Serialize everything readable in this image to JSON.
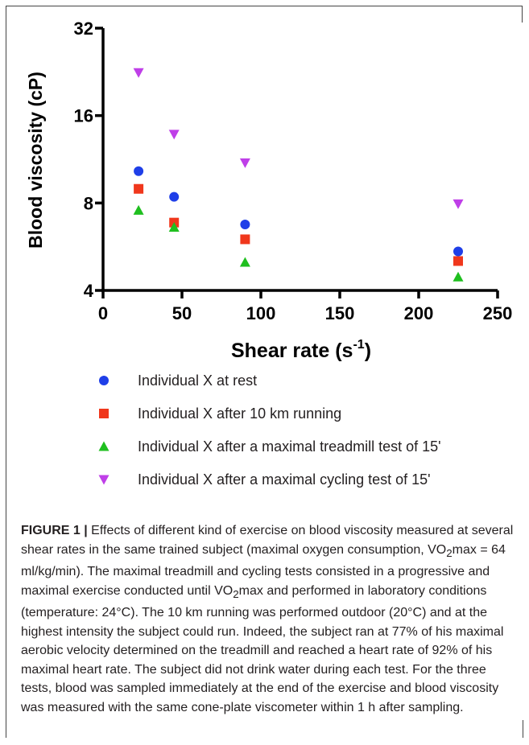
{
  "chart_data": {
    "type": "scatter",
    "xlabel": "Shear rate (s",
    "xlabel_sup": "-1",
    "xlabel_suffix": ")",
    "ylabel": "Blood viscosity (cP)",
    "xlim": [
      0,
      250
    ],
    "ylim": [
      4,
      32
    ],
    "yscale": "log2",
    "xticks": [
      0,
      50,
      100,
      150,
      200,
      250
    ],
    "yticks": [
      4,
      8,
      16,
      32
    ],
    "grid": false,
    "legend_position": "bottom",
    "series": [
      {
        "name": "Individual X at rest",
        "marker": "circle",
        "color": "#1f3fe8",
        "x": [
          22.5,
          45,
          90,
          225
        ],
        "y": [
          10.3,
          8.4,
          6.75,
          5.45
        ]
      },
      {
        "name": "Individual X after 10 km running",
        "marker": "square",
        "color": "#f0371c",
        "x": [
          22.5,
          45,
          90,
          225
        ],
        "y": [
          8.95,
          6.85,
          6.0,
          5.05
        ]
      },
      {
        "name": "Individual X after a maximal treadmill test of 15'",
        "marker": "triangle-up",
        "color": "#1fbf1f",
        "x": [
          22.5,
          45,
          90,
          225
        ],
        "y": [
          7.55,
          6.6,
          5.0,
          4.45
        ]
      },
      {
        "name": "Individual X after a maximal cycling test of 15'",
        "marker": "triangle-down",
        "color": "#bf3fe8",
        "x": [
          22.5,
          45,
          90,
          225
        ],
        "y": [
          22.5,
          13.8,
          11.0,
          7.95
        ]
      }
    ]
  },
  "caption": {
    "label": "FIGURE 1 |",
    "line1": " Effects of different kind of exercise on blood viscosity measured at several shear rates in the same trained subject (maximal oxygen consumption, VO",
    "sub1": "2",
    "line2": "max = 64 ml/kg/min). The maximal treadmill and cycling tests consisted in a progressive and maximal exercise conducted until VO",
    "sub2": "2",
    "line3": "max and performed in laboratory conditions (temperature: 24°C). The 10 km running was performed outdoor (20°C) and at the highest intensity the subject could run. Indeed, the subject ran at 77% of his maximal aerobic velocity determined on the treadmill and reached a heart rate of 92% of his maximal heart rate. The subject did not drink water during each test. For the three tests, blood was sampled immediately at the end of the exercise and blood viscosity was measured with the same cone-plate viscometer within 1 h after sampling."
  }
}
